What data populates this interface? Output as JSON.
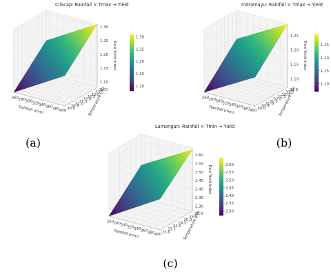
{
  "chart_data": [
    {
      "type": "surface",
      "title": "Cilacap: Rainfall × Tmax → Yield",
      "xlabel": "Rainfall (mm)",
      "ylabel": "Temperature (°C)",
      "zlabel": "Rice Yield Index",
      "x_ticks": [
        "260",
        "280",
        "300",
        "320",
        "340",
        "360",
        "380",
        "400"
      ],
      "y_ticks": [
        "30.0",
        "30.5",
        "31.0",
        "31.5",
        "32.0",
        "32.5",
        "33.0",
        "33.5",
        "34.0"
      ],
      "z_ticks": [
        "1.10",
        "1.15",
        "1.20",
        "1.25",
        "1.30"
      ],
      "colorbar_ticks": [
        "1.10",
        "1.15",
        "1.20",
        "1.25",
        "1.30"
      ],
      "xlim": [
        250,
        400
      ],
      "ylim": [
        30.0,
        34.0
      ],
      "zlim": [
        1.08,
        1.31
      ],
      "surface": {
        "x_range": [
          250,
          400
        ],
        "y_range": [
          30.0,
          34.0
        ],
        "z_corners": {
          "xmin_ymin": 1.08,
          "xmax_ymin": 1.19,
          "xmin_ymax": 1.2,
          "xmax_ymax": 1.31
        }
      },
      "colormap": "viridis",
      "caption": "(a)"
    },
    {
      "type": "surface",
      "title": "Indramayu: Rainfall × Tmax → Yield",
      "xlabel": "Rainfall (mm)",
      "ylabel": "Temperature (°C)",
      "zlabel": "Rice Yield Index",
      "x_ticks": [
        "260",
        "280",
        "300",
        "320",
        "340",
        "360",
        "380",
        "400"
      ],
      "y_ticks": [
        "30.0",
        "30.5",
        "31.0",
        "31.5",
        "32.0",
        "32.5",
        "33.0",
        "33.5",
        "34.0"
      ],
      "z_ticks": [
        "1.10",
        "1.15",
        "1.20",
        "1.25"
      ],
      "colorbar_ticks": [
        "1.10",
        "1.15",
        "1.20",
        "1.25"
      ],
      "xlim": [
        250,
        400
      ],
      "ylim": [
        30.0,
        34.0
      ],
      "zlim": [
        1.07,
        1.29
      ],
      "surface": {
        "x_range": [
          250,
          400
        ],
        "y_range": [
          30.0,
          34.0
        ],
        "z_corners": {
          "xmin_ymin": 1.07,
          "xmax_ymin": 1.17,
          "xmin_ymax": 1.19,
          "xmax_ymax": 1.29
        }
      },
      "colormap": "viridis",
      "caption": "(b)"
    },
    {
      "type": "surface",
      "title": "Lamongan: Rainfall × Tmin → Yield",
      "xlabel": "Rainfall (mm)",
      "ylabel": "Temperature (°C)",
      "zlabel": "Rice Yield Index",
      "x_ticks": [
        "260",
        "280",
        "300",
        "320",
        "340",
        "360",
        "380",
        "400"
      ],
      "y_ticks": [
        "23.0",
        "23.5",
        "24.0",
        "24.5",
        "25.0",
        "25.5",
        "26.0"
      ],
      "z_ticks": [
        "2.30",
        "2.35",
        "2.40",
        "2.45",
        "2.50",
        "2.55",
        "2.60"
      ],
      "colorbar_ticks": [
        "2.30",
        "2.35",
        "2.40",
        "2.45",
        "2.50",
        "2.55",
        "2.60"
      ],
      "xlim": [
        250,
        400
      ],
      "ylim": [
        23.0,
        26.0
      ],
      "zlim": [
        2.27,
        2.64
      ],
      "surface": {
        "x_range": [
          250,
          400
        ],
        "y_range": [
          23.0,
          26.0
        ],
        "z_corners": {
          "xmin_ymin": 2.27,
          "xmax_ymin": 2.45,
          "xmin_ymax": 2.46,
          "xmax_ymax": 2.63
        }
      },
      "colormap": "viridis",
      "caption": "(c)"
    }
  ]
}
